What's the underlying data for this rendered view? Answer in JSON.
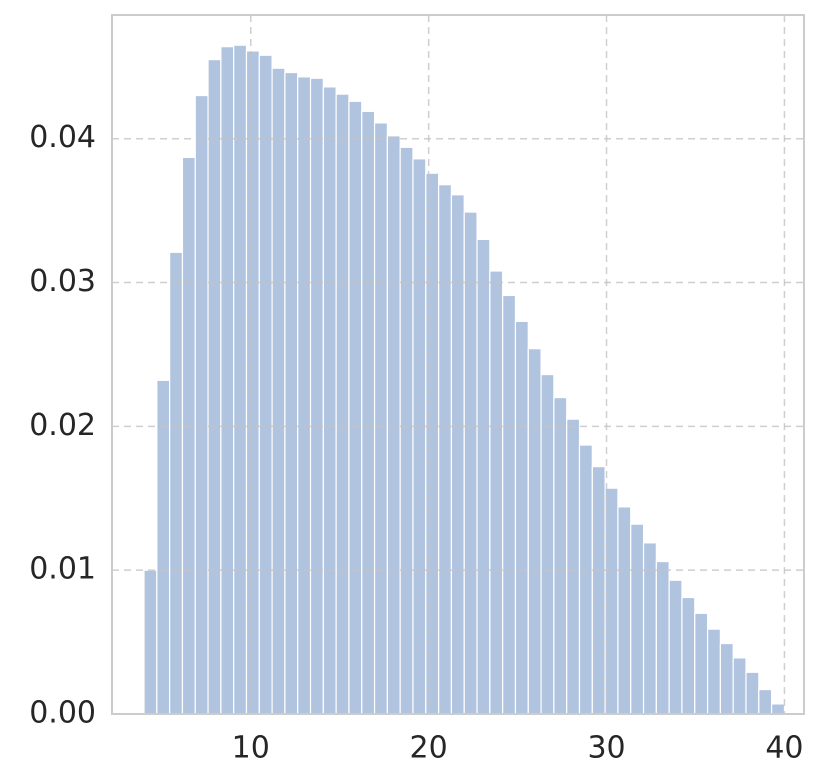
{
  "chart_data": {
    "type": "histogram",
    "color": "#b0c3df",
    "bins": [
      4,
      4.72,
      5.44,
      6.16,
      6.88,
      7.6,
      8.32,
      9.04,
      9.76,
      10.48,
      11.2,
      11.92,
      12.64,
      13.36,
      14.08,
      14.8,
      15.52,
      16.24,
      16.96,
      17.68,
      18.4,
      19.12,
      19.84,
      20.56,
      21.28,
      22,
      22.72,
      23.44,
      24.16,
      24.88,
      25.6,
      26.32,
      27.04,
      27.76,
      28.48,
      29.2,
      29.92,
      30.64,
      31.36,
      32.08,
      32.8,
      33.52,
      34.24,
      34.96,
      35.68,
      36.4,
      37.12,
      37.84,
      38.56,
      39.28,
      40
    ],
    "values": [
      0.01,
      0.0232,
      0.0321,
      0.0387,
      0.043,
      0.0455,
      0.0464,
      0.0465,
      0.0461,
      0.0458,
      0.0449,
      0.0446,
      0.0443,
      0.0442,
      0.0436,
      0.0431,
      0.0426,
      0.0419,
      0.0411,
      0.0402,
      0.0394,
      0.0386,
      0.0376,
      0.0368,
      0.0361,
      0.0349,
      0.033,
      0.0308,
      0.0291,
      0.0273,
      0.0254,
      0.0236,
      0.022,
      0.0205,
      0.0187,
      0.0172,
      0.0157,
      0.0144,
      0.0132,
      0.0119,
      0.0106,
      0.0093,
      0.0081,
      0.007,
      0.0059,
      0.0049,
      0.0039,
      0.0029,
      0.0017,
      0.0007
    ],
    "xlim": [
      2.2,
      41.1
    ],
    "ylim": [
      0,
      0.0486
    ],
    "xticks": [
      10,
      20,
      30,
      40
    ],
    "yticks": [
      {
        "value": 0,
        "label": "0.00"
      },
      0.01,
      0.02,
      0.03,
      0.04
    ],
    "grid": true
  }
}
